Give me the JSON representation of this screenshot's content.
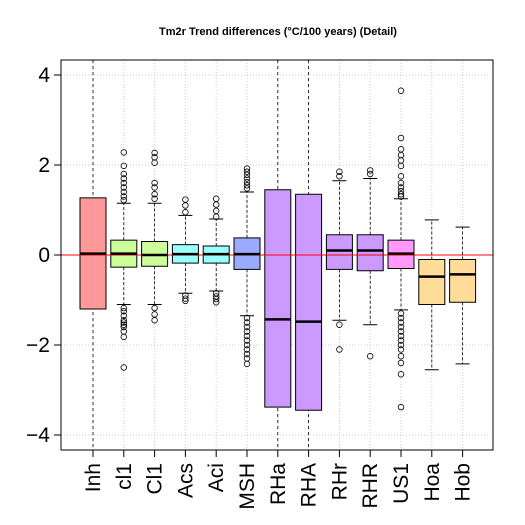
{
  "chart_data": {
    "type": "box",
    "title": "Tm2r Trend differences (°C/100 years) (Detail)",
    "xlabel": "",
    "ylabel": "",
    "ylim": [
      -4.4,
      4.4
    ],
    "yticks": [
      -4,
      -2,
      0,
      2,
      4
    ],
    "grid": true,
    "reference_line": {
      "y": 0,
      "color": "#ff0000"
    },
    "categories": [
      "Inh",
      "cl1",
      "Cl1",
      "Acs",
      "Aci",
      "MSH",
      "RHa",
      "RHA",
      "RHr",
      "RHR",
      "US1",
      "Hoa",
      "Hob"
    ],
    "boxes": [
      {
        "name": "Inh",
        "color": "#ff9999",
        "q1": -1.2,
        "median": 0.03,
        "q3": 1.27,
        "whisker_low": -1.2,
        "whisker_high": 1.27,
        "outliers": []
      },
      {
        "name": "cl1",
        "color": "#ccff99",
        "q1": -0.27,
        "median": 0.03,
        "q3": 0.33,
        "whisker_low": -1.1,
        "whisker_high": 1.15,
        "outliers": [
          2.28,
          1.98,
          1.8,
          1.7,
          1.6,
          1.5,
          1.4,
          1.3,
          1.22,
          -1.18,
          -1.25,
          -1.35,
          -1.45,
          -1.5,
          -1.55,
          -1.6,
          -1.7,
          -1.82,
          -2.5
        ]
      },
      {
        "name": "Cl1",
        "color": "#ccff99",
        "q1": -0.25,
        "median": 0.0,
        "q3": 0.3,
        "whisker_low": -1.1,
        "whisker_high": 1.15,
        "outliers": [
          2.27,
          2.17,
          2.05,
          1.6,
          1.5,
          1.35,
          1.25,
          -1.18,
          -1.32,
          -1.45
        ]
      },
      {
        "name": "Acs",
        "color": "#99ffff",
        "q1": -0.18,
        "median": 0.02,
        "q3": 0.23,
        "whisker_low": -0.85,
        "whisker_high": 0.88,
        "outliers": [
          1.23,
          1.1,
          0.95,
          -0.9,
          -0.97,
          -1.02
        ]
      },
      {
        "name": "Aci",
        "color": "#99ffff",
        "q1": -0.18,
        "median": 0.02,
        "q3": 0.2,
        "whisker_low": -0.8,
        "whisker_high": 0.8,
        "outliers": [
          1.25,
          1.12,
          0.98,
          0.85,
          -0.85,
          -0.92,
          -0.98,
          -1.05
        ]
      },
      {
        "name": "MSH",
        "color": "#99aaff",
        "q1": -0.32,
        "median": 0.02,
        "q3": 0.38,
        "whisker_low": -1.35,
        "whisker_high": 1.4,
        "outliers": [
          1.92,
          1.85,
          1.78,
          1.7,
          1.62,
          1.55,
          1.48,
          -1.4,
          -1.5,
          -1.6,
          -1.7,
          -1.8,
          -1.9,
          -2.0,
          -2.1,
          -2.2,
          -2.3,
          -2.42
        ]
      },
      {
        "name": "RHa",
        "color": "#cc99ff",
        "q1": -3.38,
        "median": -1.43,
        "q3": 1.45,
        "whisker_low": -3.38,
        "whisker_high": 1.45,
        "outliers": []
      },
      {
        "name": "RHA",
        "color": "#cc99ff",
        "q1": -3.45,
        "median": -1.48,
        "q3": 1.35,
        "whisker_low": -3.45,
        "whisker_high": 1.35,
        "outliers": []
      },
      {
        "name": "RHr",
        "color": "#cc99ff",
        "q1": -0.32,
        "median": 0.1,
        "q3": 0.45,
        "whisker_low": -1.45,
        "whisker_high": 1.65,
        "outliers": [
          1.85,
          1.75,
          -1.55,
          -2.1
        ]
      },
      {
        "name": "RHR",
        "color": "#cc99ff",
        "q1": -0.35,
        "median": 0.1,
        "q3": 0.45,
        "whisker_low": -1.55,
        "whisker_high": 1.7,
        "outliers": [
          1.88,
          1.8,
          -2.25
        ]
      },
      {
        "name": "US1",
        "color": "#ff99ff",
        "q1": -0.3,
        "median": 0.03,
        "q3": 0.33,
        "whisker_low": -1.22,
        "whisker_high": 1.25,
        "outliers": [
          3.65,
          2.6,
          2.35,
          2.22,
          2.1,
          1.98,
          1.75,
          1.6,
          1.5,
          1.42,
          1.35,
          1.3,
          -1.3,
          -1.4,
          -1.5,
          -1.6,
          -1.7,
          -1.8,
          -1.9,
          -2.0,
          -2.1,
          -2.25,
          -2.4,
          -2.65,
          -3.38
        ]
      },
      {
        "name": "Hoa",
        "color": "#ffdd99",
        "q1": -1.1,
        "median": -0.48,
        "q3": -0.1,
        "whisker_low": -2.55,
        "whisker_high": 0.78,
        "outliers": []
      },
      {
        "name": "Hob",
        "color": "#ffdd99",
        "q1": -1.05,
        "median": -0.43,
        "q3": -0.1,
        "whisker_low": -2.42,
        "whisker_high": 0.62,
        "outliers": []
      }
    ]
  }
}
